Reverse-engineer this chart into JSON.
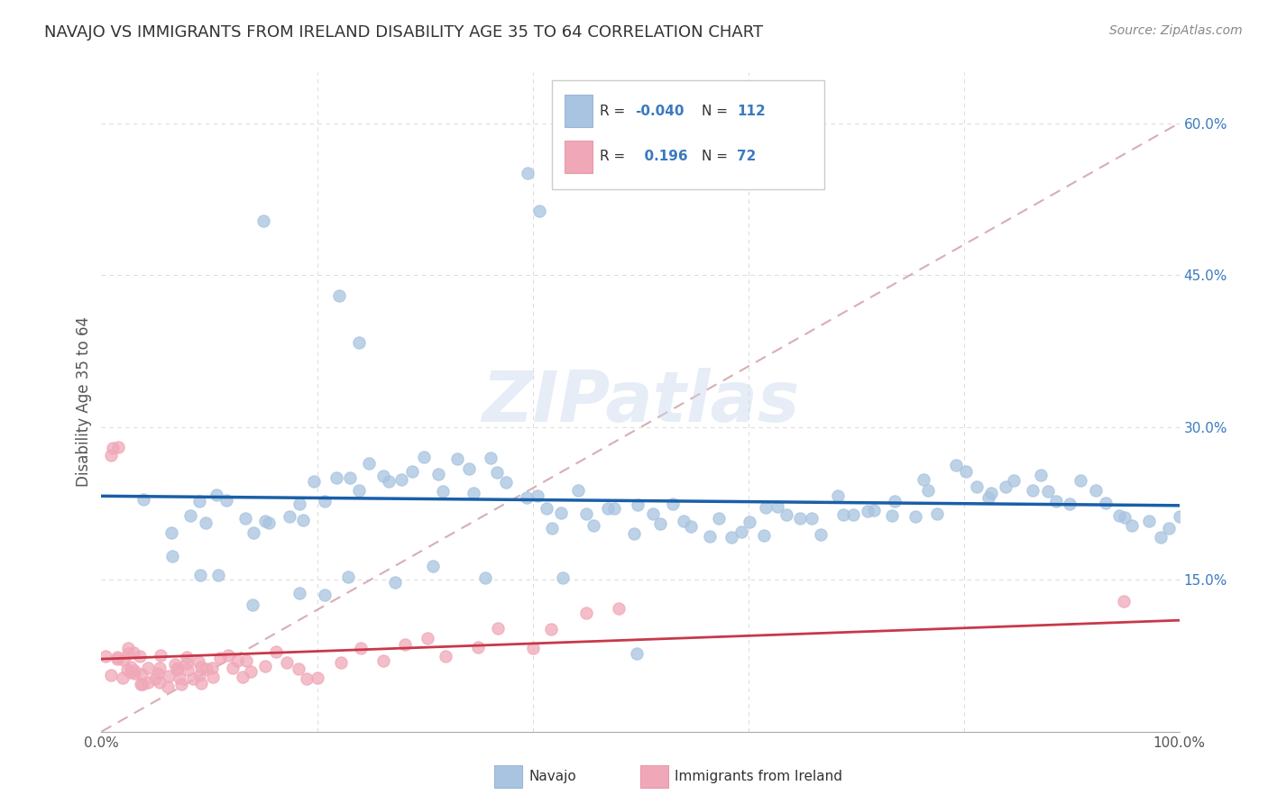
{
  "title": "NAVAJO VS IMMIGRANTS FROM IRELAND DISABILITY AGE 35 TO 64 CORRELATION CHART",
  "source": "Source: ZipAtlas.com",
  "ylabel": "Disability Age 35 to 64",
  "xlim": [
    0,
    1.0
  ],
  "ylim": [
    0,
    0.65
  ],
  "legend_navajo_R": "-0.040",
  "legend_navajo_N": "112",
  "legend_ireland_R": "0.196",
  "legend_ireland_N": "72",
  "navajo_color": "#a8c4e0",
  "ireland_color": "#f0a8b8",
  "trend_navajo_color": "#1a5fa8",
  "trend_ireland_color": "#c8384a",
  "diagonal_color": "#d0a0a8",
  "watermark": "ZIPatlas",
  "background_color": "#ffffff",
  "grid_color": "#dddddd",
  "navajo_x": [
    0.04,
    0.06,
    0.08,
    0.09,
    0.1,
    0.11,
    0.12,
    0.13,
    0.14,
    0.15,
    0.16,
    0.17,
    0.18,
    0.19,
    0.2,
    0.21,
    0.22,
    0.23,
    0.24,
    0.25,
    0.26,
    0.27,
    0.28,
    0.29,
    0.3,
    0.31,
    0.32,
    0.33,
    0.34,
    0.35,
    0.36,
    0.37,
    0.38,
    0.39,
    0.4,
    0.41,
    0.42,
    0.43,
    0.44,
    0.45,
    0.46,
    0.47,
    0.48,
    0.49,
    0.5,
    0.51,
    0.52,
    0.53,
    0.54,
    0.55,
    0.56,
    0.57,
    0.58,
    0.59,
    0.6,
    0.61,
    0.62,
    0.63,
    0.64,
    0.65,
    0.66,
    0.67,
    0.68,
    0.69,
    0.7,
    0.71,
    0.72,
    0.73,
    0.74,
    0.75,
    0.76,
    0.77,
    0.78,
    0.79,
    0.8,
    0.81,
    0.82,
    0.83,
    0.84,
    0.85,
    0.86,
    0.87,
    0.88,
    0.89,
    0.9,
    0.91,
    0.92,
    0.93,
    0.94,
    0.95,
    0.96,
    0.97,
    0.98,
    0.99,
    1.0,
    0.15,
    0.22,
    0.24,
    0.4,
    0.41,
    0.07,
    0.09,
    0.11,
    0.14,
    0.18,
    0.21,
    0.23,
    0.27,
    0.31,
    0.36,
    0.43,
    0.5
  ],
  "navajo_y": [
    0.22,
    0.19,
    0.21,
    0.22,
    0.2,
    0.24,
    0.22,
    0.21,
    0.19,
    0.2,
    0.21,
    0.22,
    0.23,
    0.21,
    0.24,
    0.22,
    0.26,
    0.25,
    0.24,
    0.27,
    0.26,
    0.25,
    0.24,
    0.26,
    0.27,
    0.25,
    0.24,
    0.26,
    0.25,
    0.24,
    0.27,
    0.26,
    0.25,
    0.24,
    0.23,
    0.22,
    0.21,
    0.22,
    0.23,
    0.22,
    0.21,
    0.22,
    0.21,
    0.2,
    0.22,
    0.21,
    0.21,
    0.22,
    0.21,
    0.2,
    0.19,
    0.21,
    0.2,
    0.19,
    0.21,
    0.2,
    0.23,
    0.22,
    0.21,
    0.22,
    0.21,
    0.2,
    0.23,
    0.22,
    0.21,
    0.22,
    0.21,
    0.22,
    0.23,
    0.22,
    0.24,
    0.23,
    0.22,
    0.26,
    0.25,
    0.24,
    0.23,
    0.24,
    0.25,
    0.24,
    0.23,
    0.25,
    0.24,
    0.23,
    0.22,
    0.24,
    0.23,
    0.22,
    0.21,
    0.22,
    0.21,
    0.2,
    0.19,
    0.21,
    0.22,
    0.5,
    0.44,
    0.39,
    0.55,
    0.51,
    0.17,
    0.16,
    0.15,
    0.13,
    0.14,
    0.13,
    0.15,
    0.14,
    0.16,
    0.15,
    0.16,
    0.08
  ],
  "ireland_x": [
    0.005,
    0.01,
    0.012,
    0.015,
    0.017,
    0.02,
    0.022,
    0.025,
    0.027,
    0.03,
    0.032,
    0.035,
    0.037,
    0.04,
    0.042,
    0.045,
    0.047,
    0.05,
    0.052,
    0.055,
    0.057,
    0.06,
    0.062,
    0.065,
    0.067,
    0.07,
    0.072,
    0.075,
    0.077,
    0.08,
    0.082,
    0.085,
    0.087,
    0.09,
    0.092,
    0.095,
    0.097,
    0.1,
    0.105,
    0.11,
    0.115,
    0.12,
    0.125,
    0.13,
    0.135,
    0.14,
    0.15,
    0.16,
    0.17,
    0.18,
    0.19,
    0.2,
    0.22,
    0.24,
    0.26,
    0.28,
    0.3,
    0.32,
    0.35,
    0.37,
    0.4,
    0.42,
    0.45,
    0.48,
    0.95,
    0.008,
    0.013,
    0.018,
    0.023,
    0.028,
    0.033,
    0.038
  ],
  "ireland_y": [
    0.07,
    0.06,
    0.07,
    0.08,
    0.06,
    0.07,
    0.06,
    0.08,
    0.06,
    0.07,
    0.06,
    0.05,
    0.07,
    0.06,
    0.05,
    0.07,
    0.06,
    0.05,
    0.07,
    0.06,
    0.05,
    0.06,
    0.05,
    0.07,
    0.06,
    0.05,
    0.06,
    0.05,
    0.06,
    0.07,
    0.06,
    0.05,
    0.07,
    0.06,
    0.05,
    0.06,
    0.07,
    0.06,
    0.07,
    0.08,
    0.07,
    0.06,
    0.07,
    0.06,
    0.07,
    0.06,
    0.07,
    0.08,
    0.07,
    0.06,
    0.05,
    0.06,
    0.07,
    0.08,
    0.07,
    0.08,
    0.09,
    0.08,
    0.09,
    0.1,
    0.09,
    0.1,
    0.11,
    0.12,
    0.13,
    0.27,
    0.28,
    0.28,
    0.07,
    0.06,
    0.05,
    0.04
  ]
}
